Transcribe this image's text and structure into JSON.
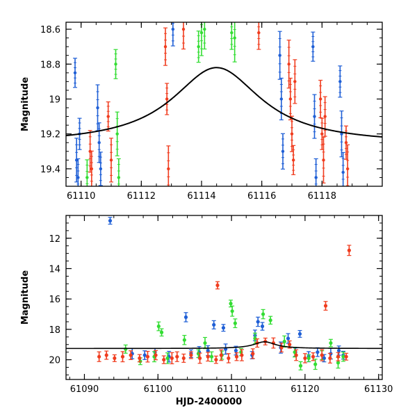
{
  "chart_data": [
    {
      "type": "scatter",
      "panel": "top",
      "title": "",
      "xlabel": "",
      "ylabel": "Magnitude",
      "xlim": [
        61109.5,
        61120.0
      ],
      "ylim": [
        19.5,
        18.56
      ],
      "y_inverted": true,
      "xticks": [
        61110,
        61112,
        61114,
        61116,
        61118
      ],
      "xtick_labels": [
        "61110",
        "61112",
        "61114",
        "61116",
        "61118"
      ],
      "yticks": [
        18.6,
        18.8,
        19.0,
        19.2,
        19.4
      ],
      "ytick_labels": [
        "18.6",
        "18.8",
        "19",
        "19.2",
        "19.4"
      ],
      "grid": false,
      "model_curve": {
        "peak_x": 61114.5,
        "peak_mag": 18.82,
        "baseline_mag": 19.26,
        "width_days": 1.8
      },
      "series": [
        {
          "name": "blue",
          "color": "#1f5fd6",
          "x": [
            61109.8,
            61109.85,
            61109.9,
            61109.95,
            61110.55,
            61110.6,
            61110.65,
            61116.6,
            61116.65,
            61116.7,
            61117.7,
            61117.75,
            61117.8,
            61118.6,
            61118.65,
            61118.7,
            61113.05
          ],
          "y": [
            18.85,
            19.35,
            19.45,
            19.2,
            19.05,
            19.25,
            19.4,
            18.75,
            19.0,
            19.3,
            18.7,
            19.1,
            19.45,
            18.9,
            19.2,
            19.42,
            18.6
          ]
        },
        {
          "name": "green",
          "color": "#33dd33",
          "x": [
            61110.2,
            61111.15,
            61111.2,
            61111.25,
            61113.9,
            61114.0,
            61114.1,
            61115.0,
            61115.1
          ],
          "y": [
            19.45,
            18.8,
            19.2,
            19.45,
            18.7,
            18.62,
            18.6,
            18.62,
            18.65
          ]
        },
        {
          "name": "red",
          "color": "#f03c1e",
          "x": [
            61110.3,
            61110.35,
            61110.9,
            61111.0,
            61112.8,
            61112.85,
            61112.9,
            61113.4,
            61115.9,
            61116.9,
            61116.95,
            61117.0,
            61117.05,
            61117.1,
            61117.95,
            61118.0,
            61118.05,
            61118.1,
            61118.8,
            61118.85
          ],
          "y": [
            19.3,
            19.4,
            19.1,
            19.35,
            18.7,
            19.0,
            19.4,
            18.6,
            18.62,
            18.8,
            19.0,
            19.2,
            19.35,
            18.9,
            19.0,
            19.2,
            19.35,
            19.1,
            19.25,
            19.4
          ]
        }
      ]
    },
    {
      "type": "scatter",
      "panel": "bottom",
      "title": "",
      "xlabel": "HJD-2400000",
      "ylabel": "Magnitude",
      "xlim": [
        61087.5,
        61130.5
      ],
      "ylim": [
        21.3,
        10.5
      ],
      "y_inverted": true,
      "xticks": [
        61090,
        61100,
        61110,
        61120,
        61130
      ],
      "xtick_labels": [
        "61090",
        "61100",
        "61110",
        "61120",
        "61130"
      ],
      "yticks": [
        12,
        14,
        16,
        18,
        20
      ],
      "ytick_labels": [
        "12",
        "14",
        "16",
        "18",
        "20"
      ],
      "grid": false,
      "model_curve": {
        "peak_x": 61114.5,
        "peak_mag": 18.82,
        "baseline_mag": 19.26,
        "width_days": 1.8
      },
      "series": [
        {
          "name": "blue",
          "color": "#1f5fd6",
          "x": [
            61093.5,
            61096.5,
            61098.2,
            61099.6,
            61101.5,
            61103.8,
            61104.5,
            61105.6,
            61106.8,
            61107.6,
            61108.9,
            61109.2,
            61110.6,
            61112.8,
            61113.2,
            61113.6,
            61114.2,
            61116.7,
            61117.7,
            61118.7,
            61119.3,
            61120.5,
            61121.7,
            61122.6,
            61123.5,
            61124.6,
            61125.2
          ],
          "y": [
            10.85,
            19.6,
            19.7,
            19.5,
            19.8,
            17.2,
            19.6,
            19.5,
            19.4,
            17.7,
            17.9,
            19.3,
            19.4,
            19.7,
            18.4,
            17.5,
            17.8,
            19.2,
            18.6,
            19.5,
            18.3,
            19.8,
            19.5,
            19.9,
            19.6,
            19.4,
            19.7
          ]
        },
        {
          "name": "green",
          "color": "#33dd33",
          "x": [
            61095.6,
            61097.6,
            61099.5,
            61100.1,
            61100.5,
            61101.3,
            61103.6,
            61105.5,
            61106.4,
            61107.3,
            61108.7,
            61109.9,
            61110.1,
            61110.5,
            61111.3,
            61113.2,
            61114.3,
            61115.3,
            61117.2,
            61118.6,
            61119.4,
            61120.5,
            61121.4,
            61122.3,
            61123.5,
            61124.5,
            61125.2
          ],
          "y": [
            19.3,
            20.1,
            19.8,
            17.8,
            18.2,
            19.9,
            18.7,
            19.6,
            18.9,
            19.8,
            19.7,
            16.3,
            16.8,
            17.6,
            19.5,
            18.6,
            17.0,
            17.4,
            18.8,
            19.5,
            20.4,
            19.9,
            20.3,
            19.7,
            18.9,
            20.2,
            19.8
          ]
        },
        {
          "name": "red",
          "color": "#f03c1e",
          "x": [
            61092.0,
            61093.0,
            61094.1,
            61095.2,
            61096.3,
            61097.5,
            61098.6,
            61099.7,
            61100.8,
            61101.9,
            61102.6,
            61103.5,
            61104.5,
            61105.7,
            61106.8,
            61107.9,
            61108.6,
            61109.6,
            61110.7,
            61111.4,
            61112.9,
            61113.5,
            61114.6,
            61115.7,
            61116.8,
            61117.9,
            61118.8,
            61120.0,
            61121.1,
            61122.3,
            61123.4,
            61124.5,
            61125.6,
            61126.0,
            61122.8,
            61108.1
          ],
          "y": [
            19.8,
            19.7,
            19.9,
            19.8,
            19.7,
            19.9,
            19.8,
            19.7,
            20.0,
            19.9,
            19.8,
            19.9,
            19.7,
            19.9,
            19.8,
            20.0,
            19.7,
            19.9,
            19.8,
            19.7,
            19.6,
            18.9,
            18.8,
            18.9,
            19.2,
            19.0,
            19.7,
            19.9,
            19.8,
            19.7,
            19.9,
            19.8,
            19.8,
            12.8,
            16.45,
            15.1
          ]
        }
      ]
    }
  ]
}
